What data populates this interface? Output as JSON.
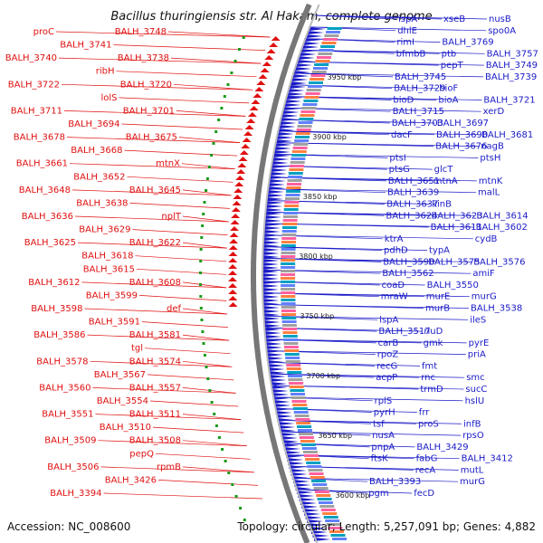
{
  "title": "Bacillus thuringiensis str. Al Hakam, complete genome",
  "accession": "Accession: NC_008600",
  "summary": "Topology: circular; Length: 5,257,091 bp; Genes: 4,882",
  "colors": {
    "reverse_strand": "#e01010",
    "forward_strand": "#1a1ac8",
    "backbone": "#777777",
    "feature_green": "#1a9a1a"
  },
  "scale_labels": [
    "3950 kbp",
    "3900 kbp",
    "3850 kbp",
    "3800 kbp",
    "3750 kbp",
    "3700 kbp",
    "3650 kbp",
    "3600 kbp"
  ],
  "left_labels": [
    "proC",
    "BALH_3748",
    "BALH_3741",
    "BALH_3740",
    "BALH_3738",
    "ribH",
    "BALH_3722",
    "BALH_3720",
    "lolS",
    "BALH_3711",
    "BALH_3701",
    "BALH_3694",
    "BALH_3678",
    "BALH_3675",
    "BALH_3668",
    "BALH_3661",
    "mtnX",
    "BALH_3652",
    "BALH_3648",
    "BALH_3645",
    "BALH_3638",
    "BALH_3636",
    "nplT",
    "BALH_3629",
    "BALH_3625",
    "BALH_3622",
    "BALH_3618",
    "BALH_3615",
    "BALH_3612",
    "BALH_3608",
    "BALH_3599",
    "BALH_3598",
    "def",
    "BALH_3591",
    "BALH_3586",
    "BALH_3581",
    "tgl",
    "BALH_3578",
    "BALH_3574",
    "BALH_3567",
    "BALH_3560",
    "BALH_3557",
    "BALH_3554",
    "BALH_3551",
    "BALH_3511",
    "BALH_3510",
    "BALH_3509",
    "BALH_3508",
    "pepQ",
    "BALH_3506",
    "rpmB",
    "BALH_3426",
    "BALH_3394"
  ],
  "right_labels": [
    "ispA",
    "xseB",
    "nusB",
    "dhlE",
    "spo0A",
    "rimI",
    "BALH_3769",
    "bfmbB",
    "ptb",
    "BALH_3757",
    "pepT",
    "BALH_3749",
    "BALH_3745",
    "BALH_3739",
    "BALH_3729",
    "bioF",
    "bioD",
    "bioA",
    "BALH_3721",
    "BALH_3715",
    "xerD",
    "BALH_3703",
    "BALH_3697",
    "dacF",
    "BALH_3690",
    "BALH_3681",
    "BALH_3676",
    "nagB",
    "ptsI",
    "ptsH",
    "ptsG",
    "glcT",
    "BALH_3651",
    "mtnA",
    "mtnK",
    "BALH_3639",
    "malL",
    "BALH_3637",
    "kinB",
    "BALH_3624",
    "BALH_3623",
    "BALH_3614",
    "BALH_3611",
    "BALH_3602",
    "ktrA",
    "cydB",
    "pdhD",
    "typA",
    "BALH_3590",
    "BALH_3575",
    "BALH_3576",
    "BALH_3562",
    "amiF",
    "coaD",
    "BALH_3550",
    "mraW",
    "murE",
    "murG",
    "murB",
    "BALH_3538",
    "lspA",
    "ileS",
    "BALH_3517",
    "rluD",
    "carB",
    "gmk",
    "pyrE",
    "rpoZ",
    "priA",
    "recG",
    "fmt",
    "acpP",
    "rnc",
    "smc",
    "trmD",
    "sucC",
    "rplS",
    "hslU",
    "pyrH",
    "frr",
    "tsf",
    "proS",
    "infB",
    "nusA",
    "rpsO",
    "pnpA",
    "BALH_3429",
    "ftsK",
    "fabG",
    "BALH_3412",
    "recA",
    "mutL",
    "BALH_3393",
    "murG",
    "pgm",
    "fecD"
  ]
}
